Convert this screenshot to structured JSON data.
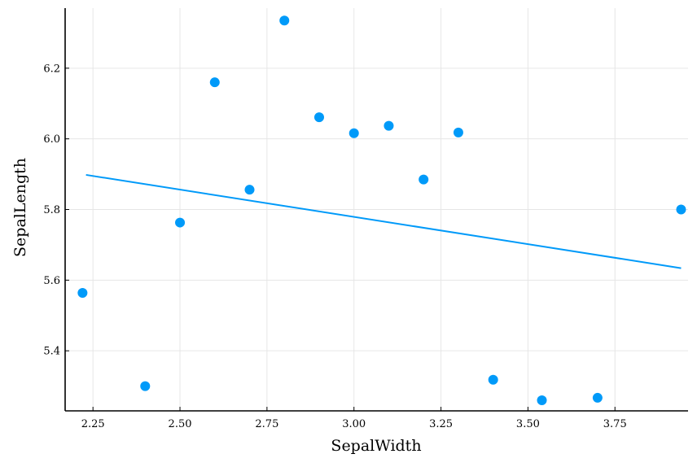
{
  "chart_data": {
    "type": "scatter",
    "xlabel": "SepalWidth",
    "ylabel": "SepalLength",
    "xlim": [
      2.17,
      3.96
    ],
    "ylim": [
      5.23,
      6.37
    ],
    "xticks": [
      2.25,
      2.5,
      2.75,
      3.0,
      3.25,
      3.5,
      3.75
    ],
    "xtick_labels": [
      "2.25",
      "2.50",
      "2.75",
      "3.00",
      "3.25",
      "3.50",
      "3.75"
    ],
    "yticks": [
      5.4,
      5.6,
      5.8,
      6.0,
      6.2
    ],
    "ytick_labels": [
      "5.4",
      "5.6",
      "5.8",
      "6.0",
      "6.2"
    ],
    "grid": true,
    "legend": "none",
    "series": [
      {
        "kind": "points",
        "color": "#009AF9",
        "points": [
          {
            "x": 2.22,
            "y": 5.564
          },
          {
            "x": 2.4,
            "y": 5.3
          },
          {
            "x": 2.5,
            "y": 5.763
          },
          {
            "x": 2.6,
            "y": 6.16
          },
          {
            "x": 2.7,
            "y": 5.856
          },
          {
            "x": 2.8,
            "y": 6.335
          },
          {
            "x": 2.9,
            "y": 6.061
          },
          {
            "x": 3.0,
            "y": 6.016
          },
          {
            "x": 3.1,
            "y": 6.037
          },
          {
            "x": 3.2,
            "y": 5.885
          },
          {
            "x": 3.3,
            "y": 6.018
          },
          {
            "x": 3.4,
            "y": 5.318
          },
          {
            "x": 3.54,
            "y": 5.26
          },
          {
            "x": 3.7,
            "y": 5.267
          },
          {
            "x": 3.94,
            "y": 5.8
          }
        ]
      },
      {
        "kind": "line",
        "color": "#009AF9",
        "points": [
          {
            "x": 2.23,
            "y": 5.898
          },
          {
            "x": 3.94,
            "y": 5.634
          }
        ]
      }
    ]
  }
}
